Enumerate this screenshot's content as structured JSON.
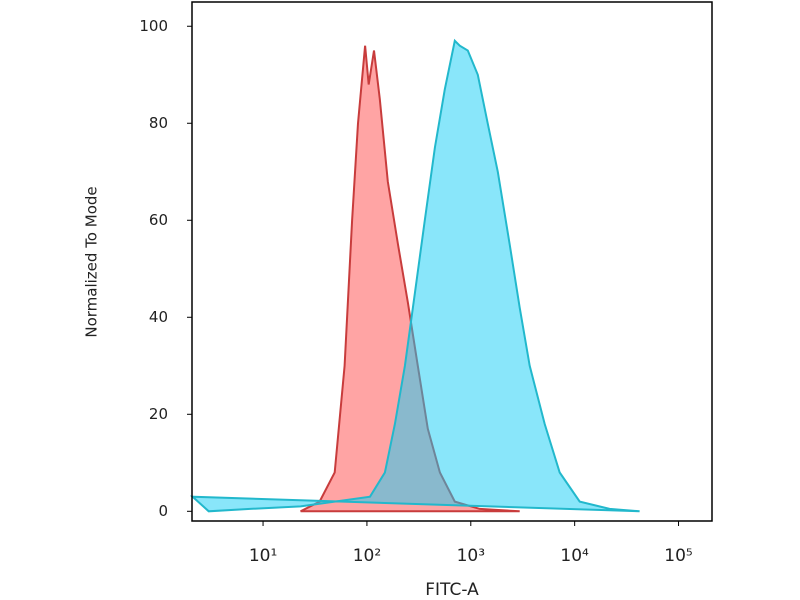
{
  "chart_data": {
    "type": "area",
    "xlabel": "FITC-A",
    "ylabel": "Normalized To Mode",
    "xscale": "log",
    "xlim": [
      2.07,
      210000
    ],
    "ylim": [
      -2,
      105
    ],
    "xticks": [
      {
        "value": 10,
        "label": "10¹"
      },
      {
        "value": 100,
        "label": "10²"
      },
      {
        "value": 1000,
        "label": "10³"
      },
      {
        "value": 10000,
        "label": "10⁴"
      },
      {
        "value": 100000,
        "label": "10⁵"
      }
    ],
    "yticks": [
      0,
      20,
      40,
      60,
      80,
      100
    ],
    "series": [
      {
        "color": "#c83c3c",
        "fill": "rgba(255,90,90,0.55)",
        "x": [
          23,
          35,
          49,
          61,
          72,
          82,
          96,
          104,
          117,
          133,
          159,
          199,
          248,
          309,
          386,
          504,
          702,
          1220,
          2960
        ],
        "values": [
          0,
          2,
          8,
          30,
          60,
          80,
          96,
          88,
          95,
          85,
          68,
          55,
          43,
          30,
          17,
          8,
          2,
          0.5,
          0
        ]
      },
      {
        "color": "#22b8cc",
        "fill": "rgba(20,205,245,0.5)",
        "x": [
          2.1,
          3,
          7.5,
          23,
          107,
          149,
          186,
          232,
          290,
          361,
          451,
          562,
          702,
          783,
          935,
          1167,
          1455,
          1820,
          2371,
          2960,
          3690,
          5150,
          7180,
          11170,
          21700,
          42200
        ],
        "values": [
          3,
          0,
          0.5,
          1,
          3,
          8,
          18,
          30,
          45,
          60,
          75,
          87,
          97,
          96,
          95,
          90,
          80,
          70,
          55,
          42,
          30,
          18,
          8,
          2,
          0.5,
          0
        ]
      }
    ]
  }
}
